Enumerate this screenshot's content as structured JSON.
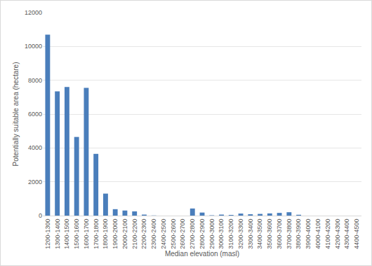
{
  "chart_data": {
    "type": "bar",
    "x_label": "Median elevation (masl)",
    "y_label": "Potentially suitable area (hectare)",
    "categories": [
      "1200-1300",
      "1300-1400",
      "1400-1500",
      "1500-1600",
      "1600-1700",
      "1700-1800",
      "1800-1900",
      "1900-2000",
      "2000-2100",
      "2100-2200",
      "2200-2300",
      "2300-2400",
      "2400-2500",
      "2500-2600",
      "2600-2700",
      "2700-2800",
      "2800-2900",
      "2900-3000",
      "3000-3100",
      "3100-3200",
      "3200-3300",
      "3300-3400",
      "3400-3500",
      "3500-3600",
      "3600-3700",
      "3700-3800",
      "3800-3900",
      "3900-4000",
      "4000-4100",
      "4100-4200",
      "4200-4300",
      "4300-4400",
      "4400-4500"
    ],
    "values": [
      10700,
      7350,
      7600,
      4650,
      7550,
      3650,
      1300,
      380,
      300,
      250,
      60,
      10,
      0,
      0,
      0,
      420,
      180,
      20,
      60,
      40,
      120,
      80,
      100,
      130,
      160,
      200,
      50,
      0,
      0,
      0,
      0,
      0,
      0
    ],
    "color": "#4a7ebb",
    "ylim": [
      0,
      12000
    ],
    "yticks": [
      0,
      2000,
      4000,
      6000,
      8000,
      10000,
      12000
    ],
    "grid": true
  }
}
